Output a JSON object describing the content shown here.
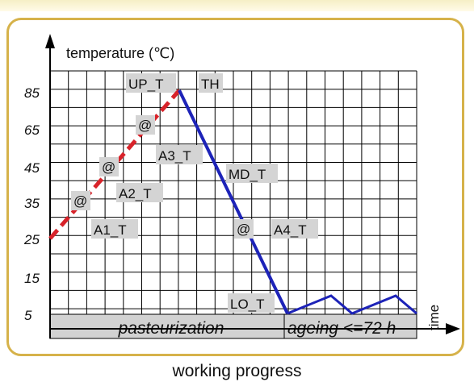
{
  "diagram": {
    "y_axis_label": "temperature (℃)",
    "x_axis_label": "time",
    "caption": "working progress",
    "y_ticks": [
      "85",
      "65",
      "45",
      "35",
      "25",
      "15",
      "5"
    ],
    "phases": [
      "pasteurization",
      "ageing <=72 h"
    ],
    "tags": {
      "up_t": "UP_T",
      "th": "TH",
      "a3_t": "A3_T",
      "md_t": "MD_T",
      "a2_t": "A2_T",
      "a1_t": "A1_T",
      "a4_t": "A4_T",
      "lo_t": "LO_T"
    },
    "at_marks": [
      "@",
      "@",
      "@",
      "@"
    ],
    "colors": {
      "heating_line": "#d8232a",
      "cooling_line": "#1d23b8",
      "frame": "#d6b24a",
      "grid": "#000000"
    },
    "line_styles": {
      "heating": "dashed",
      "cooling": "solid"
    }
  }
}
